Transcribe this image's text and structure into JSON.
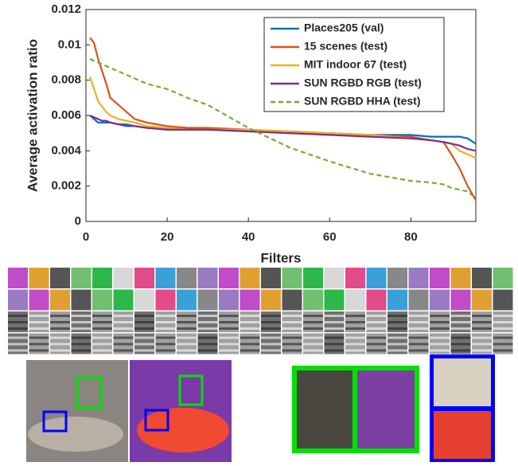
{
  "chart_data": {
    "type": "line",
    "xlabel": "Filters",
    "ylabel": "Average activation ratio",
    "x": [
      1,
      2,
      3,
      4,
      5,
      6,
      8,
      10,
      12,
      15,
      20,
      25,
      30,
      40,
      50,
      60,
      70,
      80,
      85,
      88,
      90,
      92,
      94,
      96
    ],
    "series": [
      {
        "name": "Places205 (val)",
        "color": "#0072bd",
        "style": "solid",
        "values": [
          0.006,
          0.0058,
          0.0056,
          0.0056,
          0.0056,
          0.0056,
          0.0055,
          0.0055,
          0.0054,
          0.0053,
          0.0052,
          0.0052,
          0.0052,
          0.0051,
          0.005,
          0.005,
          0.0049,
          0.0049,
          0.0048,
          0.0048,
          0.0048,
          0.0048,
          0.0047,
          0.0044
        ]
      },
      {
        "name": "15 scenes (test)",
        "color": "#d95319",
        "style": "solid",
        "values": [
          0.0104,
          0.0101,
          0.0092,
          0.0085,
          0.0078,
          0.007,
          0.0066,
          0.0062,
          0.0058,
          0.0056,
          0.0054,
          0.0053,
          0.0053,
          0.0052,
          0.0051,
          0.005,
          0.0049,
          0.0048,
          0.0046,
          0.0045,
          0.0038,
          0.003,
          0.002,
          0.0012
        ]
      },
      {
        "name": "MIT indoor 67 (test)",
        "color": "#edb120",
        "style": "solid",
        "values": [
          0.0082,
          0.0075,
          0.0068,
          0.0065,
          0.0062,
          0.006,
          0.0058,
          0.0057,
          0.0056,
          0.0054,
          0.0053,
          0.0052,
          0.0052,
          0.0052,
          0.0051,
          0.005,
          0.0049,
          0.0047,
          0.0046,
          0.0045,
          0.0044,
          0.004,
          0.0038,
          0.0036
        ]
      },
      {
        "name": "SUN RGBD RGB (test)",
        "color": "#7e2f8e",
        "style": "solid",
        "values": [
          0.006,
          0.0059,
          0.0058,
          0.0057,
          0.0057,
          0.0056,
          0.0055,
          0.0054,
          0.0054,
          0.0053,
          0.0052,
          0.0052,
          0.0052,
          0.0051,
          0.005,
          0.0049,
          0.0048,
          0.0047,
          0.0046,
          0.0045,
          0.0044,
          0.0043,
          0.0041,
          0.004
        ]
      },
      {
        "name": "SUN RGBD HHA (test)",
        "color": "#77ac30",
        "style": "dashed",
        "values": [
          0.0092,
          0.0091,
          0.009,
          0.0089,
          0.0088,
          0.0087,
          0.0085,
          0.0083,
          0.0081,
          0.0078,
          0.0075,
          0.007,
          0.0066,
          0.0053,
          0.0042,
          0.0034,
          0.0027,
          0.0023,
          0.0022,
          0.0021,
          0.0019,
          0.0018,
          0.0017,
          0.0013
        ]
      }
    ],
    "xlim": [
      0,
      96
    ],
    "ylim": [
      0,
      0.012
    ],
    "xticks": [
      0,
      20,
      40,
      60,
      80
    ],
    "yticks": [
      0,
      0.002,
      0.004,
      0.006,
      0.008,
      0.01,
      0.012
    ],
    "legend": "upper right"
  }
}
